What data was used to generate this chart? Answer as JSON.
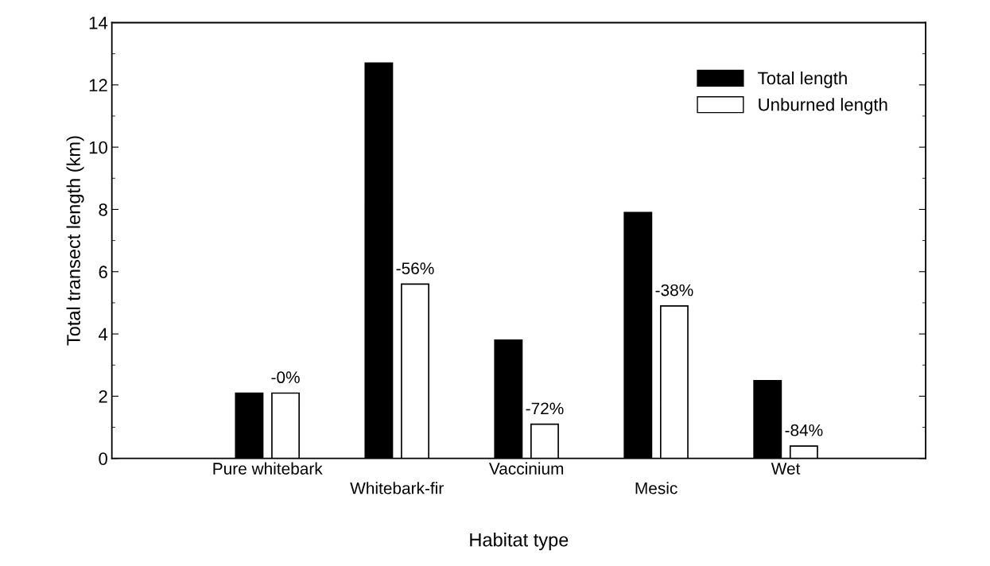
{
  "chart_data": {
    "type": "bar",
    "xlabel": "Habitat type",
    "ylabel": "Total transect length (km)",
    "categories": [
      "Pure whitebark",
      "Whitebark-fir",
      "Vaccinium",
      "Mesic",
      "Wet"
    ],
    "series": [
      {
        "name": "Total length",
        "color": "#000000",
        "values": [
          2.1,
          12.7,
          3.8,
          7.9,
          2.5
        ]
      },
      {
        "name": "Unburned length",
        "color": "#ffffff",
        "values": [
          2.1,
          5.6,
          1.1,
          4.9,
          0.4
        ]
      }
    ],
    "annotations": [
      "-0%",
      "-56%",
      "-72%",
      "-38%",
      "-84%"
    ],
    "ylim": [
      0,
      14
    ],
    "yticks": [
      0,
      2,
      4,
      6,
      8,
      10,
      12,
      14
    ],
    "grid": false,
    "legend": "top right"
  }
}
